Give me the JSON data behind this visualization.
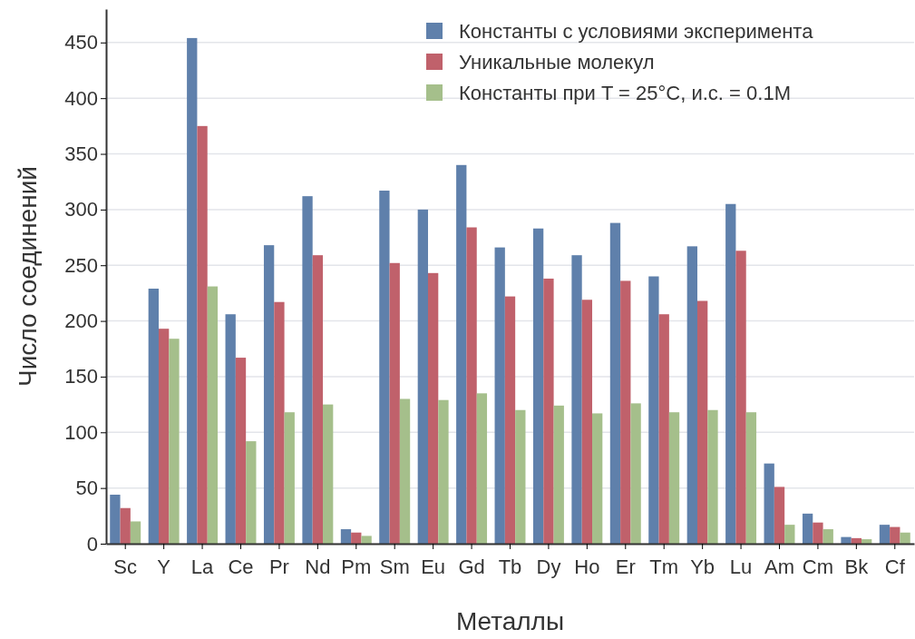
{
  "chart_data": {
    "type": "bar",
    "xlabel": "Металлы",
    "ylabel": "Число соединений",
    "categories": [
      "Sc",
      "Y",
      "La",
      "Ce",
      "Pr",
      "Nd",
      "Pm",
      "Sm",
      "Eu",
      "Gd",
      "Tb",
      "Dy",
      "Ho",
      "Er",
      "Tm",
      "Yb",
      "Lu",
      "Am",
      "Cm",
      "Bk",
      "Cf"
    ],
    "series": [
      {
        "name": "Константы с условиями эксперимента",
        "color": "#5f80ab",
        "values": [
          44,
          229,
          454,
          206,
          268,
          312,
          13,
          317,
          300,
          340,
          266,
          283,
          259,
          288,
          240,
          267,
          305,
          72,
          27,
          6,
          17
        ]
      },
      {
        "name": "Уникальные молекул",
        "color": "#c0616b",
        "values": [
          32,
          193,
          375,
          167,
          217,
          259,
          10,
          252,
          243,
          284,
          222,
          238,
          219,
          236,
          206,
          218,
          263,
          51,
          19,
          5,
          15
        ]
      },
      {
        "name": "Константы при T = 25°C, и.с. = 0.1M",
        "color": "#a5bf8b",
        "values": [
          20,
          184,
          231,
          92,
          118,
          125,
          7,
          130,
          129,
          135,
          120,
          124,
          117,
          126,
          118,
          120,
          118,
          17,
          13,
          4,
          10
        ]
      }
    ],
    "ylim": [
      0,
      480
    ],
    "yticks": [
      0,
      50,
      100,
      150,
      200,
      250,
      300,
      350,
      400,
      450
    ],
    "grid": "y",
    "legend": "top right"
  }
}
